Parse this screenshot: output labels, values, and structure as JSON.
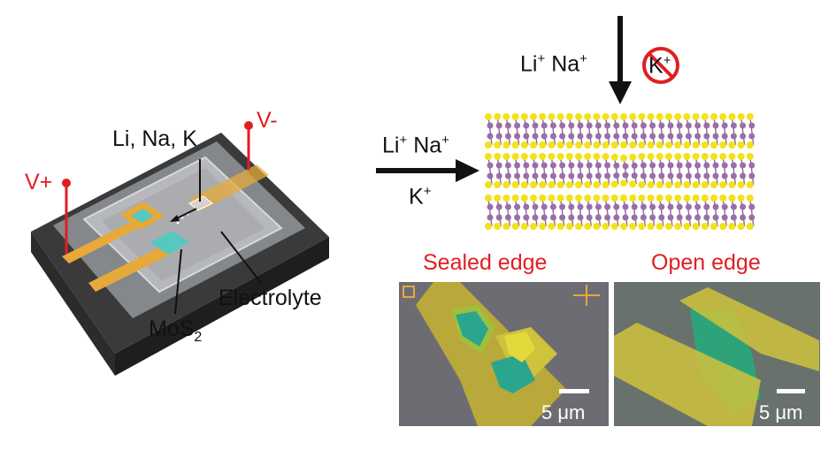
{
  "device": {
    "v_plus": "V+",
    "v_minus": "V-",
    "metals": "Li, Na, K",
    "electrolyte": "Electrolyte",
    "mos2_main": "MoS",
    "mos2_sub": "2"
  },
  "top_flow": {
    "li": "Li",
    "na": "Na",
    "k": "K",
    "charge": "+"
  },
  "side_flow": {
    "li": "Li",
    "na": "Na",
    "k": "K",
    "charge": "+"
  },
  "panels": {
    "sealed_title": "Sealed edge",
    "open_title": "Open edge",
    "sealed_scale": "5 μm",
    "open_scale": "5 μm"
  },
  "colors": {
    "red": "#e01e22",
    "gold": "#e6a93a",
    "mos2_cyan": "#55c8c0",
    "sulfur": "#f2e21a",
    "molybdenum": "#9b6ea8"
  }
}
